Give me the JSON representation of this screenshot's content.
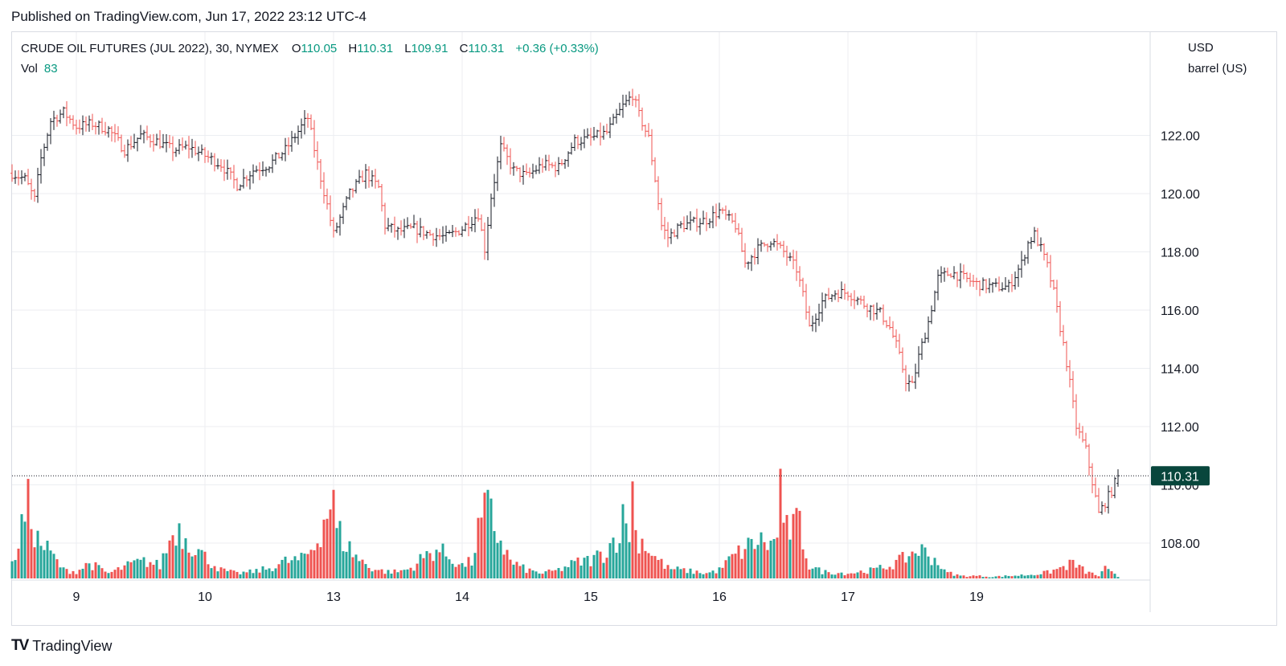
{
  "header": {
    "published": "Published on TradingView.com, Jun 17, 2022 23:12 UTC-4"
  },
  "legend": {
    "symbol": "CRUDE OIL FUTURES (JUL 2022), 30, NYMEX",
    "open_label": "O",
    "open": "110.05",
    "high_label": "H",
    "high": "110.31",
    "low_label": "L",
    "low": "109.91",
    "close_label": "C",
    "close": "110.31",
    "change": "+0.36 (+0.33%)",
    "vol_label": "Vol",
    "vol": "83"
  },
  "price_scale": {
    "currency": "USD",
    "unit": "barrel (US)",
    "last_price": "110.31"
  },
  "footer": {
    "brand": "TradingView"
  },
  "colors": {
    "up": "#26a69a",
    "down": "#ef5350",
    "text_up": "#089981",
    "grid": "#eceef2",
    "last_price_bg": "#08463c"
  },
  "chart_data": {
    "type": "ohlc",
    "interval": "30 min",
    "y_ticks": [
      108,
      110,
      112,
      114,
      116,
      118,
      120,
      122
    ],
    "ylim": [
      107,
      124
    ],
    "x_ticks": [
      "9",
      "10",
      "13",
      "14",
      "15",
      "16",
      "17",
      "19"
    ],
    "last_price": 110.31,
    "close_anchors": [
      [
        0,
        120.7
      ],
      [
        4,
        120.5
      ],
      [
        7,
        119.8
      ],
      [
        9,
        121.2
      ],
      [
        12,
        122.5
      ],
      [
        16,
        122.8
      ],
      [
        20,
        122.3
      ],
      [
        25,
        122.4
      ],
      [
        30,
        122.2
      ],
      [
        35,
        121.5
      ],
      [
        40,
        122.0
      ],
      [
        45,
        121.8
      ],
      [
        50,
        121.5
      ],
      [
        55,
        121.6
      ],
      [
        60,
        121.3
      ],
      [
        65,
        121.0
      ],
      [
        70,
        120.3
      ],
      [
        75,
        120.8
      ],
      [
        80,
        121.0
      ],
      [
        85,
        121.5
      ],
      [
        90,
        122.3
      ],
      [
        92,
        122.6
      ],
      [
        95,
        121.0
      ],
      [
        98,
        119.6
      ],
      [
        100,
        118.6
      ],
      [
        105,
        120.0
      ],
      [
        110,
        120.7
      ],
      [
        114,
        120.2
      ],
      [
        116,
        118.9
      ],
      [
        120,
        118.7
      ],
      [
        125,
        118.8
      ],
      [
        130,
        118.6
      ],
      [
        135,
        118.5
      ],
      [
        140,
        118.8
      ],
      [
        145,
        119.3
      ],
      [
        147,
        118.1
      ],
      [
        149,
        119.9
      ],
      [
        152,
        121.6
      ],
      [
        156,
        120.8
      ],
      [
        160,
        120.6
      ],
      [
        165,
        121.0
      ],
      [
        170,
        120.9
      ],
      [
        175,
        121.8
      ],
      [
        180,
        121.9
      ],
      [
        185,
        122.1
      ],
      [
        190,
        123.0
      ],
      [
        193,
        123.4
      ],
      [
        195,
        122.7
      ],
      [
        198,
        121.9
      ],
      [
        200,
        120.5
      ],
      [
        202,
        118.9
      ],
      [
        204,
        118.5
      ],
      [
        208,
        118.9
      ],
      [
        212,
        119.0
      ],
      [
        216,
        119.1
      ],
      [
        220,
        119.4
      ],
      [
        225,
        118.9
      ],
      [
        228,
        117.6
      ],
      [
        232,
        118.1
      ],
      [
        236,
        118.4
      ],
      [
        240,
        118.0
      ],
      [
        244,
        117.4
      ],
      [
        246,
        116.5
      ],
      [
        248,
        115.4
      ],
      [
        252,
        116.3
      ],
      [
        256,
        116.6
      ],
      [
        260,
        116.6
      ],
      [
        265,
        116.2
      ],
      [
        270,
        115.9
      ],
      [
        273,
        115.4
      ],
      [
        275,
        114.8
      ],
      [
        278,
        113.6
      ],
      [
        280,
        113.4
      ],
      [
        282,
        114.4
      ],
      [
        285,
        115.6
      ],
      [
        288,
        117.1
      ],
      [
        292,
        117.3
      ],
      [
        296,
        117.1
      ],
      [
        300,
        116.9
      ],
      [
        305,
        116.8
      ],
      [
        310,
        116.8
      ],
      [
        314,
        117.6
      ],
      [
        316,
        118.3
      ],
      [
        318,
        118.6
      ],
      [
        320,
        118.1
      ],
      [
        322,
        117.5
      ],
      [
        324,
        116.6
      ],
      [
        326,
        115.4
      ],
      [
        328,
        114.2
      ],
      [
        331,
        112.0
      ],
      [
        334,
        111.2
      ],
      [
        336,
        110.1
      ],
      [
        338,
        109.0
      ],
      [
        340,
        109.4
      ],
      [
        342,
        109.8
      ],
      [
        344,
        110.31
      ]
    ],
    "volume_anchors": [
      [
        0,
        15
      ],
      [
        3,
        60
      ],
      [
        5,
        85
      ],
      [
        8,
        45
      ],
      [
        12,
        30
      ],
      [
        16,
        10
      ],
      [
        20,
        8
      ],
      [
        24,
        18
      ],
      [
        30,
        6
      ],
      [
        34,
        12
      ],
      [
        38,
        18
      ],
      [
        42,
        20
      ],
      [
        46,
        15
      ],
      [
        48,
        35
      ],
      [
        51,
        62
      ],
      [
        55,
        45
      ],
      [
        60,
        25
      ],
      [
        65,
        10
      ],
      [
        70,
        6
      ],
      [
        75,
        8
      ],
      [
        80,
        12
      ],
      [
        85,
        20
      ],
      [
        90,
        22
      ],
      [
        94,
        38
      ],
      [
        97,
        70
      ],
      [
        99,
        90
      ],
      [
        101,
        58
      ],
      [
        104,
        40
      ],
      [
        108,
        22
      ],
      [
        112,
        12
      ],
      [
        116,
        8
      ],
      [
        120,
        8
      ],
      [
        124,
        12
      ],
      [
        128,
        25
      ],
      [
        132,
        35
      ],
      [
        136,
        25
      ],
      [
        140,
        15
      ],
      [
        143,
        20
      ],
      [
        145,
        55
      ],
      [
        146,
        66
      ],
      [
        148,
        85
      ],
      [
        150,
        60
      ],
      [
        152,
        45
      ],
      [
        155,
        20
      ],
      [
        160,
        10
      ],
      [
        165,
        6
      ],
      [
        170,
        10
      ],
      [
        175,
        18
      ],
      [
        180,
        22
      ],
      [
        184,
        30
      ],
      [
        188,
        50
      ],
      [
        190,
        68
      ],
      [
        193,
        55
      ],
      [
        196,
        45
      ],
      [
        200,
        25
      ],
      [
        204,
        12
      ],
      [
        208,
        10
      ],
      [
        212,
        8
      ],
      [
        216,
        6
      ],
      [
        220,
        10
      ],
      [
        224,
        25
      ],
      [
        228,
        35
      ],
      [
        232,
        45
      ],
      [
        236,
        40
      ],
      [
        240,
        50
      ],
      [
        242,
        60
      ],
      [
        245,
        62
      ],
      [
        248,
        15
      ],
      [
        252,
        8
      ],
      [
        256,
        7
      ],
      [
        260,
        6
      ],
      [
        264,
        8
      ],
      [
        268,
        10
      ],
      [
        272,
        14
      ],
      [
        276,
        20
      ],
      [
        280,
        30
      ],
      [
        282,
        35
      ],
      [
        285,
        28
      ],
      [
        288,
        20
      ],
      [
        290,
        8
      ],
      [
        295,
        3
      ],
      [
        300,
        3
      ],
      [
        305,
        2
      ],
      [
        310,
        3
      ],
      [
        315,
        4
      ],
      [
        318,
        5
      ],
      [
        322,
        7
      ],
      [
        326,
        12
      ],
      [
        330,
        18
      ],
      [
        334,
        8
      ],
      [
        338,
        3
      ],
      [
        340,
        11
      ],
      [
        344,
        2
      ]
    ],
    "volume_spikes": [
      [
        100,
        105
      ],
      [
        148,
        105
      ],
      [
        193,
        115
      ],
      [
        239,
        130
      ]
    ]
  }
}
